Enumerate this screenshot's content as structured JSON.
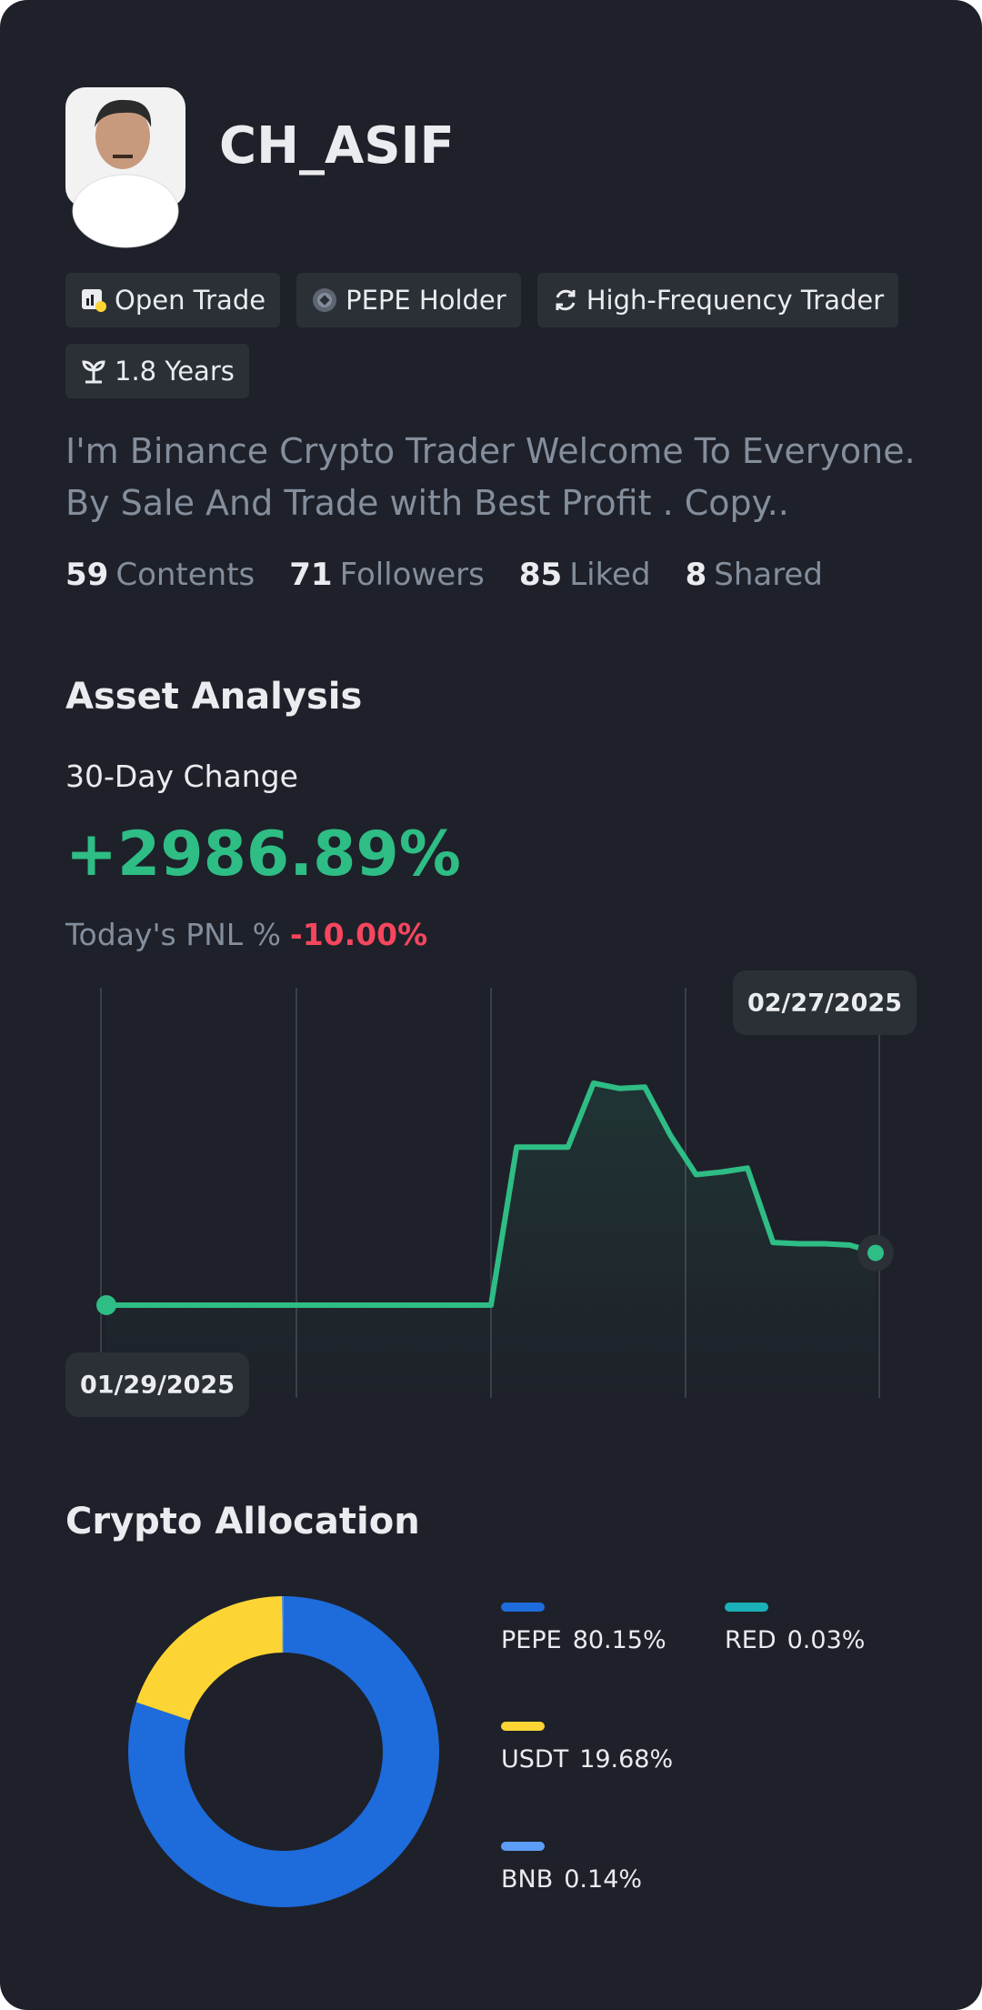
{
  "profile": {
    "name": "CH_ASIF",
    "tags": [
      "Open Trade",
      "PEPE Holder",
      "High-Frequency Trader",
      "1.8 Years"
    ],
    "bio": "I'm Binance Crypto Trader Welcome To Everyone. By Sale And Trade with Best Profit . Copy..",
    "stats": [
      {
        "value": 59,
        "label": "Contents"
      },
      {
        "value": 71,
        "label": "Followers"
      },
      {
        "value": 85,
        "label": "Liked"
      },
      {
        "value": 8,
        "label": "Shared"
      }
    ]
  },
  "asset_analysis": {
    "title": "Asset Analysis",
    "change_label": "30-Day Change",
    "change_value": "+2986.89%",
    "pnl_label": "Today's PNL %",
    "pnl_value": "-10.00%"
  },
  "chart_data": [
    {
      "type": "line",
      "x": [
        "01/29/2025",
        null,
        null,
        null,
        null,
        null,
        null,
        null,
        null,
        null,
        null,
        null,
        null,
        null,
        null,
        null,
        null,
        null,
        null,
        null,
        null,
        null,
        null,
        null,
        null,
        null,
        null,
        null,
        null,
        null,
        "02/27/2025"
      ],
      "values": [
        0,
        0,
        0,
        0,
        0,
        0,
        0,
        0,
        0,
        0,
        0,
        0,
        0,
        0,
        0,
        0,
        121,
        121,
        121,
        170,
        166,
        167,
        130,
        100,
        102,
        105,
        48,
        47,
        47,
        46,
        40
      ],
      "color": "#2ebd85"
    },
    {
      "type": "pie",
      "title": "Crypto Allocation",
      "categories": [
        "PEPE",
        "USDT",
        "BNB",
        "RED"
      ],
      "values": [
        80.15,
        19.68,
        0.14,
        0.03
      ],
      "value_labels": [
        "80.15%",
        "19.68%",
        "0.14%",
        "0.03%"
      ],
      "colors": [
        "#1e6bdb",
        "#fcd535",
        "#5c9ef7",
        "#1cb0b8"
      ]
    }
  ]
}
